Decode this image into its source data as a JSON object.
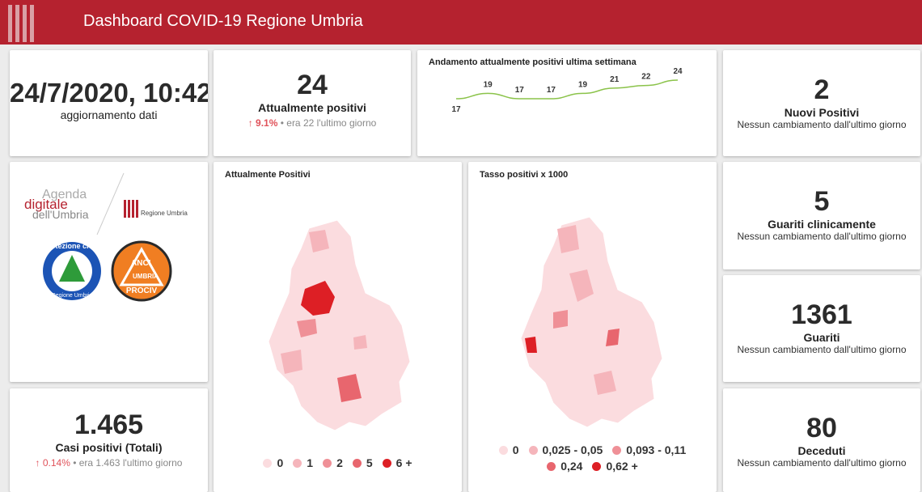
{
  "header": {
    "title": "Dashboard COVID-19 Regione Umbria"
  },
  "update": {
    "value": "24/7/2020, 10:42",
    "label": "aggiornamento dati"
  },
  "positivi": {
    "value": 24,
    "label": "Attualmente positivi",
    "change": "9.1%",
    "previous": "era 22",
    "period": "l'ultimo giorno"
  },
  "trend": {
    "title": "Andamento attualmente positivi ultima settimana",
    "values": [
      17,
      19,
      17,
      17,
      19,
      21,
      22,
      24
    ],
    "color": "#8bc34a"
  },
  "nuovi": {
    "value": 2,
    "label": "Nuovi Positivi",
    "note": "Nessun cambiamento dall'ultimo giorno"
  },
  "guariti_clinicamente": {
    "value": 5,
    "label": "Guariti clinicamente",
    "note": "Nessun cambiamento dall'ultimo giorno"
  },
  "guariti": {
    "value": 1361,
    "label": "Guariti",
    "note": "Nessun cambiamento dall'ultimo giorno"
  },
  "deceduti": {
    "value": 80,
    "label": "Deceduti",
    "note": "Nessun cambiamento dall'ultimo giorno"
  },
  "casi": {
    "value": "1.465",
    "label": "Casi positivi (Totali)",
    "change": "0.14%",
    "previous": "era 1.463",
    "period": "l'ultimo giorno"
  },
  "logos": {
    "agenda": [
      "Agenda",
      "digitale",
      "dell'Umbria"
    ],
    "regione": "Regione Umbria",
    "protezione": [
      "Protezione civile",
      "Regione Umbria"
    ],
    "anci": [
      "ANCI",
      "UMBRIA",
      "PROCIV"
    ]
  },
  "map_positivi": {
    "title": "Attualmente Positivi",
    "legend": [
      {
        "label": "0",
        "color": "#fbdcdf"
      },
      {
        "label": "1",
        "color": "#f5b5bb"
      },
      {
        "label": "2",
        "color": "#ef9097"
      },
      {
        "label": "5",
        "color": "#e8666e"
      },
      {
        "label": "6 +",
        "color": "#dd1f25"
      }
    ]
  },
  "map_tasso": {
    "title": "Tasso positivi x 1000",
    "legend": [
      {
        "label": "0",
        "color": "#fbdcdf"
      },
      {
        "label": "0,025 - 0,05",
        "color": "#f5b5bb"
      },
      {
        "label": "0,093 - 0,11",
        "color": "#ef9097"
      },
      {
        "label": "0,24",
        "color": "#e8666e"
      },
      {
        "label": "0,62 +",
        "color": "#dd1f25"
      }
    ]
  }
}
